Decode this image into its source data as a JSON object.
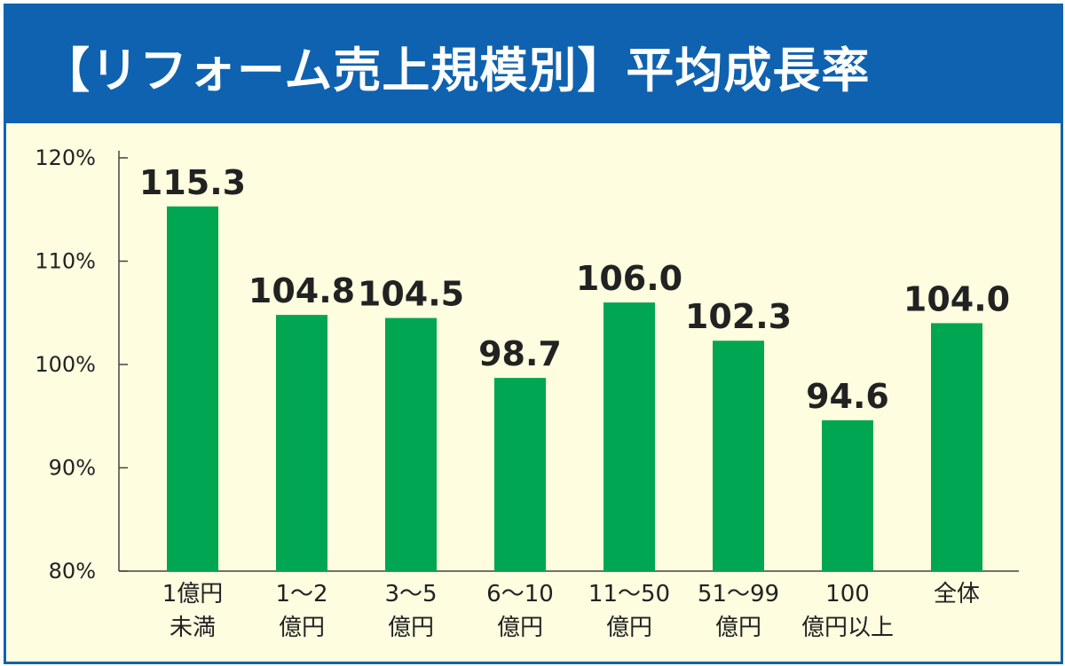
{
  "header": {
    "title": "【リフォーム売上規模別】平均成長率"
  },
  "colors": {
    "header_bg": "#0f62b0",
    "panel_bg": "#fefde0",
    "bar": "#00a651",
    "axis": "#444444",
    "text": "#222222"
  },
  "chart_data": {
    "type": "bar",
    "title": "【リフォーム売上規模別】平均成長率",
    "categories": [
      [
        "1億円",
        "未満"
      ],
      [
        "1〜2",
        "億円"
      ],
      [
        "3〜5",
        "億円"
      ],
      [
        "6〜10",
        "億円"
      ],
      [
        "11〜50",
        "億円"
      ],
      [
        "51〜99",
        "億円"
      ],
      [
        "100",
        "億円以上"
      ],
      [
        "全体"
      ]
    ],
    "values": [
      115.3,
      104.8,
      104.5,
      98.7,
      106.0,
      102.3,
      94.6,
      104.0
    ],
    "value_labels": [
      "115.3",
      "104.8",
      "104.5",
      "98.7",
      "106.0",
      "102.3",
      "94.6",
      "104.0"
    ],
    "yticks": [
      80,
      90,
      100,
      110,
      120
    ],
    "ytick_labels": [
      "80%",
      "90%",
      "100%",
      "110%",
      "120%"
    ],
    "ylim": [
      80,
      120
    ],
    "xlabel": "",
    "ylabel": "",
    "grid": false,
    "legend": "none"
  }
}
